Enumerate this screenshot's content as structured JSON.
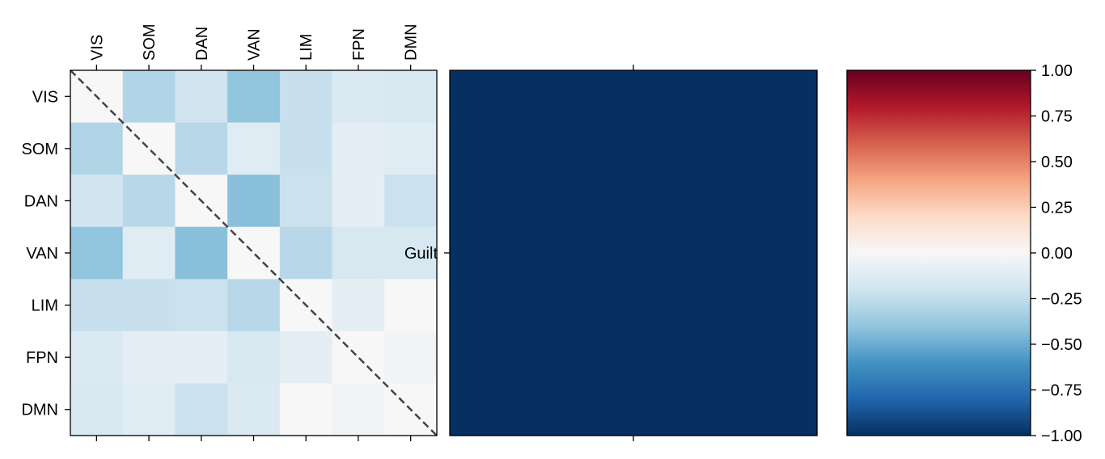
{
  "chart_data": [
    {
      "type": "heatmap",
      "x_labels": [
        "VIS",
        "SOM",
        "DAN",
        "VAN",
        "LIM",
        "FPN",
        "DMN"
      ],
      "y_labels": [
        "VIS",
        "SOM",
        "DAN",
        "VAN",
        "LIM",
        "FPN",
        "DMN"
      ],
      "values": [
        [
          0.0,
          -0.3,
          -0.2,
          -0.4,
          -0.23,
          -0.15,
          -0.17
        ],
        [
          -0.3,
          0.0,
          -0.28,
          -0.12,
          -0.23,
          -0.1,
          -0.12
        ],
        [
          -0.2,
          -0.28,
          0.0,
          -0.42,
          -0.22,
          -0.1,
          -0.22
        ],
        [
          -0.4,
          -0.12,
          -0.42,
          0.0,
          -0.28,
          -0.17,
          -0.17
        ],
        [
          -0.23,
          -0.23,
          -0.22,
          -0.28,
          0.0,
          -0.1,
          0.0
        ],
        [
          -0.15,
          -0.1,
          -0.1,
          -0.17,
          -0.1,
          0.0,
          -0.03
        ],
        [
          -0.17,
          -0.12,
          -0.22,
          -0.15,
          0.0,
          -0.03,
          0.0
        ]
      ],
      "diagonal_line": "dashed",
      "colormap": "RdBu_r",
      "vmin": -1,
      "vmax": 1
    },
    {
      "type": "heatmap",
      "x_labels": [
        ""
      ],
      "y_labels": [
        "Guilt"
      ],
      "values": [
        [
          -1.0
        ]
      ],
      "colormap": "RdBu_r",
      "vmin": -1,
      "vmax": 1
    }
  ],
  "colorbar": {
    "ticks": [
      1.0,
      0.75,
      0.5,
      0.25,
      0.0,
      -0.25,
      -0.5,
      -0.75,
      -1.0
    ],
    "tick_labels": [
      "1.00",
      "0.75",
      "0.50",
      "0.25",
      "0.00",
      "−0.25",
      "−0.50",
      "−0.75",
      "−1.00"
    ],
    "vmin": -1,
    "vmax": 1
  }
}
